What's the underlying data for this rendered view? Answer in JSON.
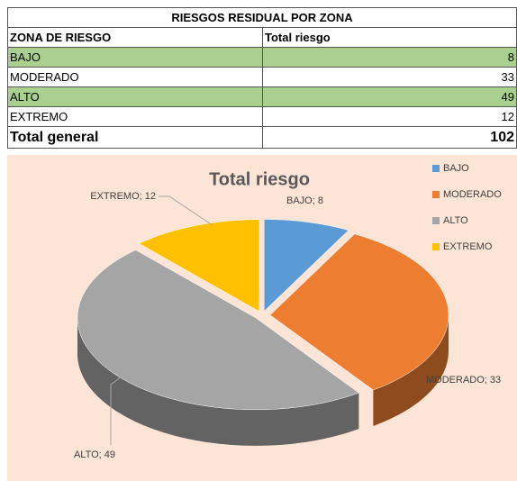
{
  "table": {
    "title": "RIESGOS RESIDUAL POR ZONA",
    "header": [
      "ZONA DE RIESGO",
      "Total riesgo"
    ],
    "rows": [
      [
        "BAJO",
        8
      ],
      [
        "MODERADO",
        33
      ],
      [
        "ALTO",
        49
      ],
      [
        "EXTREMO",
        12
      ]
    ],
    "total": [
      "Total general",
      102
    ]
  },
  "chart_data": {
    "type": "pie3d",
    "title": "Total riesgo",
    "categories": [
      "BAJO",
      "MODERADO",
      "ALTO",
      "EXTREMO"
    ],
    "values": [
      8,
      33,
      49,
      12
    ],
    "value_labels": [
      "BAJO; 8",
      "MODERADO; 33",
      "ALTO; 49",
      "EXTREMO; 12"
    ],
    "colors": [
      "#5b9bd5",
      "#ed7d31",
      "#a5a5a5",
      "#ffc000"
    ],
    "legend": "right"
  }
}
